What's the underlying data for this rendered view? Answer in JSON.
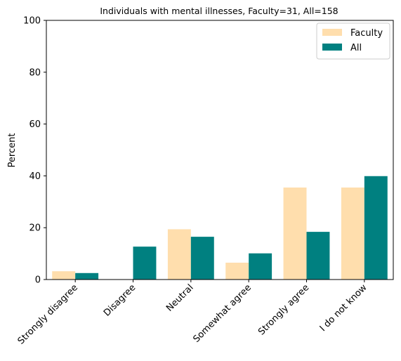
{
  "chart_data": {
    "type": "bar",
    "title": "Individuals with mental illnesses, Faculty=31, All=158",
    "xlabel": "",
    "ylabel": "Percent",
    "ylim": [
      0,
      100
    ],
    "yticks": [
      0,
      20,
      40,
      60,
      80,
      100
    ],
    "categories": [
      "Strongly disagree",
      "Disagree",
      "Neutral",
      "Somewhat agree",
      "Strongly agree",
      "I do not know"
    ],
    "series": [
      {
        "name": "Faculty",
        "color": "#ffdead",
        "values": [
          3.2,
          0,
          19.4,
          6.5,
          35.5,
          35.5
        ]
      },
      {
        "name": "All",
        "color": "#008080",
        "values": [
          2.5,
          12.7,
          16.5,
          10.1,
          18.4,
          39.9
        ]
      }
    ],
    "legend": {
      "position": "top-right"
    },
    "grid": false
  }
}
